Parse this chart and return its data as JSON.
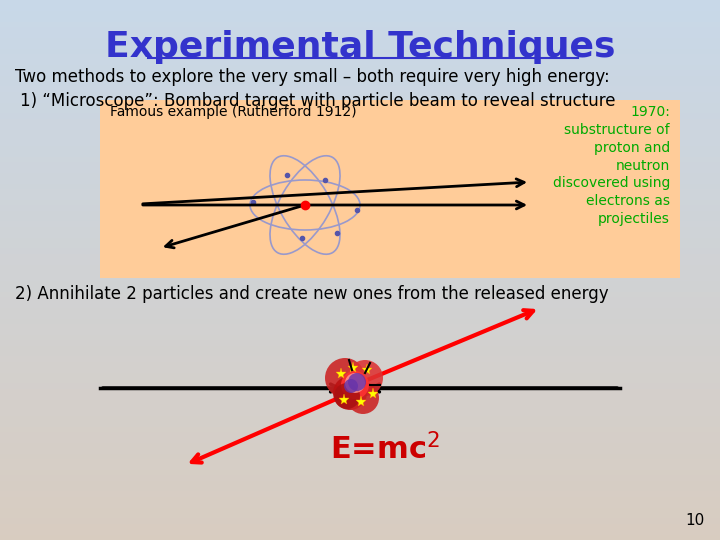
{
  "title": "Experimental Techniques",
  "title_color": "#3333CC",
  "title_fontsize": 26,
  "bg_top_color": "#C8D8E8",
  "bg_bottom_color": "#D8CCC0",
  "line1": "Two methods to explore the very small – both require very high energy:",
  "line2": "1) “Microscope”: Bombard target with particle beam to reveal structure",
  "line3": "2) Annihilate 2 particles and create new ones from the released energy",
  "box_color": "#FFCC99",
  "box_label": "Famous example (Rutherford 1912)",
  "green_text": "1970:\nsubstructure of\nproton and\nneutron\ndiscovered using\nelectrons as\nprojectiles",
  "green_color": "#00AA00",
  "emc2_color": "#CC0000",
  "slide_num": "10",
  "text_color": "#000000",
  "font_family": "Comic Sans MS"
}
